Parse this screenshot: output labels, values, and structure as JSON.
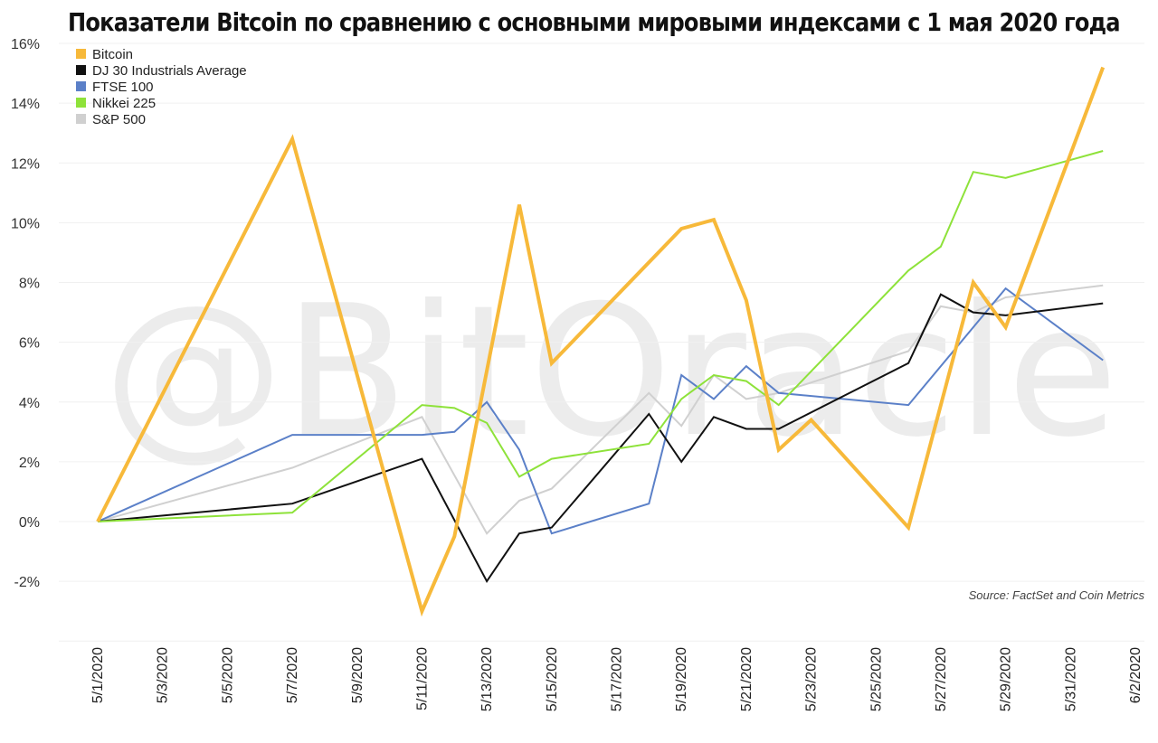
{
  "chart_data": {
    "type": "line",
    "title": "Показатели Bitcoin по сравнению с основными мировыми индексами с 1 мая 2020 года",
    "watermark": "@BitOracle",
    "source": "Source: FactSet and Coin Metrics",
    "ylim": [
      -4,
      16
    ],
    "yticks": [
      -2,
      0,
      2,
      4,
      6,
      8,
      10,
      12,
      14,
      16
    ],
    "ytick_labels": [
      "-2%",
      "0%",
      "2%",
      "4%",
      "6%",
      "8%",
      "10%",
      "12%",
      "14%",
      "16%"
    ],
    "xlim": [
      "2020-05-01",
      "2020-06-02"
    ],
    "xtick_labels": [
      "5/1/2020",
      "5/3/2020",
      "5/5/2020",
      "5/7/2020",
      "5/9/2020",
      "5/11/2020",
      "5/13/2020",
      "5/15/2020",
      "5/17/2020",
      "5/19/2020",
      "5/21/2020",
      "5/23/2020",
      "5/25/2020",
      "5/27/2020",
      "5/29/2020",
      "5/31/2020",
      "6/2/2020"
    ],
    "grid": true,
    "legend_position": "top-left",
    "series": [
      {
        "name": "Bitcoin",
        "color": "#f7b93a",
        "width": 4,
        "x": [
          "2020-05-01",
          "2020-05-07",
          "2020-05-11",
          "2020-05-12",
          "2020-05-14",
          "2020-05-15",
          "2020-05-19",
          "2020-05-20",
          "2020-05-21",
          "2020-05-22",
          "2020-05-23",
          "2020-05-26",
          "2020-05-28",
          "2020-05-29",
          "2020-06-01"
        ],
        "y": [
          0.0,
          12.8,
          -3.0,
          -0.5,
          10.6,
          5.3,
          9.8,
          10.1,
          7.4,
          2.4,
          3.4,
          -0.2,
          8.0,
          6.5,
          15.2
        ]
      },
      {
        "name": "DJ 30 Industrials Average",
        "color": "#111111",
        "width": 2,
        "x": [
          "2020-05-01",
          "2020-05-07",
          "2020-05-11",
          "2020-05-13",
          "2020-05-14",
          "2020-05-15",
          "2020-05-18",
          "2020-05-19",
          "2020-05-20",
          "2020-05-21",
          "2020-05-22",
          "2020-05-26",
          "2020-05-27",
          "2020-05-28",
          "2020-05-29",
          "2020-06-01"
        ],
        "y": [
          0.0,
          0.6,
          2.1,
          -2.0,
          -0.4,
          -0.2,
          3.6,
          2.0,
          3.5,
          3.1,
          3.1,
          5.3,
          7.6,
          7.0,
          6.9,
          7.3
        ]
      },
      {
        "name": "FTSE 100",
        "color": "#5b80c8",
        "width": 2,
        "x": [
          "2020-05-01",
          "2020-05-07",
          "2020-05-11",
          "2020-05-12",
          "2020-05-13",
          "2020-05-14",
          "2020-05-15",
          "2020-05-18",
          "2020-05-19",
          "2020-05-20",
          "2020-05-21",
          "2020-05-22",
          "2020-05-26",
          "2020-05-29",
          "2020-06-01"
        ],
        "y": [
          0.0,
          2.9,
          2.9,
          3.0,
          4.0,
          2.4,
          -0.4,
          0.6,
          4.9,
          4.1,
          5.2,
          4.3,
          3.9,
          7.8,
          5.4
        ]
      },
      {
        "name": "Nikkei 225",
        "color": "#8ee23a",
        "width": 2,
        "x": [
          "2020-05-01",
          "2020-05-07",
          "2020-05-11",
          "2020-05-12",
          "2020-05-13",
          "2020-05-14",
          "2020-05-15",
          "2020-05-18",
          "2020-05-19",
          "2020-05-20",
          "2020-05-21",
          "2020-05-22",
          "2020-05-26",
          "2020-05-27",
          "2020-05-28",
          "2020-05-29",
          "2020-06-01"
        ],
        "y": [
          0.0,
          0.3,
          3.9,
          3.8,
          3.3,
          1.5,
          2.1,
          2.6,
          4.1,
          4.9,
          4.7,
          3.9,
          8.4,
          9.2,
          11.7,
          11.5,
          12.4
        ]
      },
      {
        "name": "S&P 500",
        "color": "#d0d0d0",
        "width": 2,
        "x": [
          "2020-05-01",
          "2020-05-07",
          "2020-05-11",
          "2020-05-13",
          "2020-05-14",
          "2020-05-15",
          "2020-05-18",
          "2020-05-19",
          "2020-05-20",
          "2020-05-21",
          "2020-05-22",
          "2020-05-26",
          "2020-05-27",
          "2020-05-28",
          "2020-05-29",
          "2020-06-01"
        ],
        "y": [
          0.0,
          1.8,
          3.5,
          -0.4,
          0.7,
          1.1,
          4.3,
          3.2,
          4.9,
          4.1,
          4.3,
          5.7,
          7.2,
          7.0,
          7.5,
          7.9
        ]
      }
    ]
  }
}
